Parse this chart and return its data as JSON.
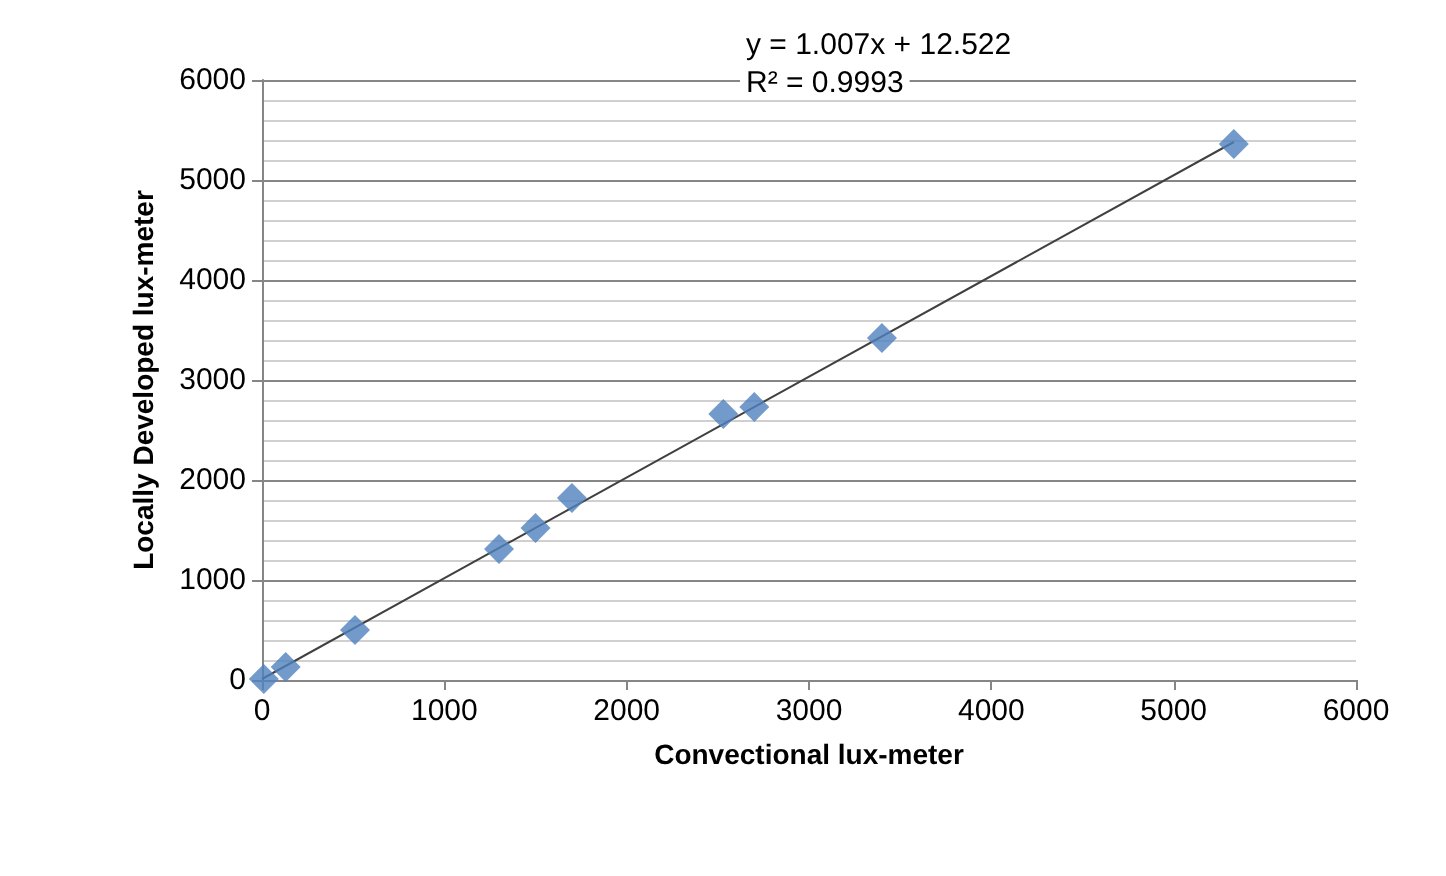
{
  "chart_data": {
    "type": "scatter",
    "xlabel": "Convectional lux-meter",
    "ylabel": "Locally Developed lux-meter",
    "annotations": [
      "y = 1.007x + 12.522",
      "R² = 0.9993"
    ],
    "series": [
      {
        "color": "#4f81bd",
        "marker": "diamond",
        "x": [
          10,
          130,
          510,
          1300,
          1500,
          1700,
          2530,
          2700,
          3400,
          5330
        ],
        "values": [
          10,
          130,
          500,
          1310,
          1520,
          1820,
          2660,
          2730,
          3420,
          5360
        ]
      },
      {
        "type": "line",
        "color": "#404040",
        "marker": "none",
        "x": [
          0,
          5330
        ],
        "values": [
          10,
          5380
        ]
      }
    ],
    "xlim": [
      0,
      6000
    ],
    "xticks": [
      0,
      1000,
      2000,
      3000,
      4000,
      5000,
      6000
    ],
    "ylim": [
      0,
      6000
    ],
    "yticks": [
      0,
      1000,
      2000,
      3000,
      4000,
      5000,
      6000
    ],
    "grid": "y"
  }
}
